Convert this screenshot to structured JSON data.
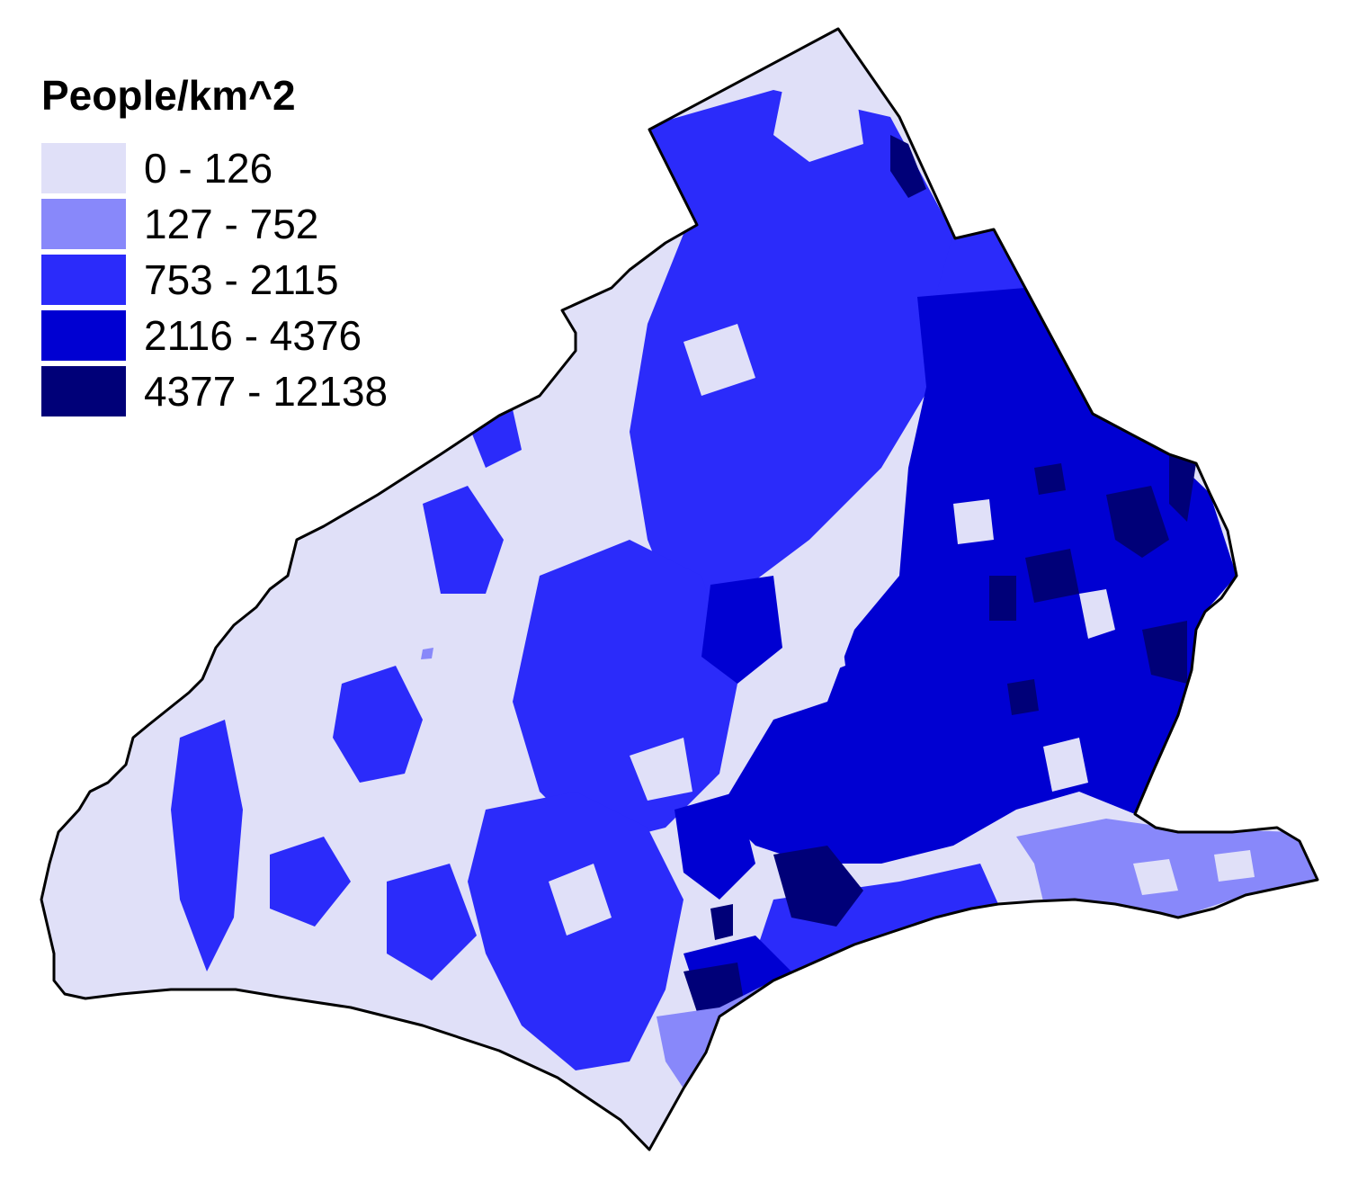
{
  "legend": {
    "title": "People/km^2",
    "classes": [
      {
        "label": "0 - 126",
        "color": "#e0e0f8"
      },
      {
        "label": "127 - 752",
        "color": "#8888fa"
      },
      {
        "label": "753 - 2115",
        "color": "#2b2bfa"
      },
      {
        "label": "2116 - 4376",
        "color": "#0000d2"
      },
      {
        "label": "4377 - 12138",
        "color": "#000078"
      }
    ]
  },
  "map": {
    "outline_color": "#000000",
    "background_color": "#ffffff"
  }
}
